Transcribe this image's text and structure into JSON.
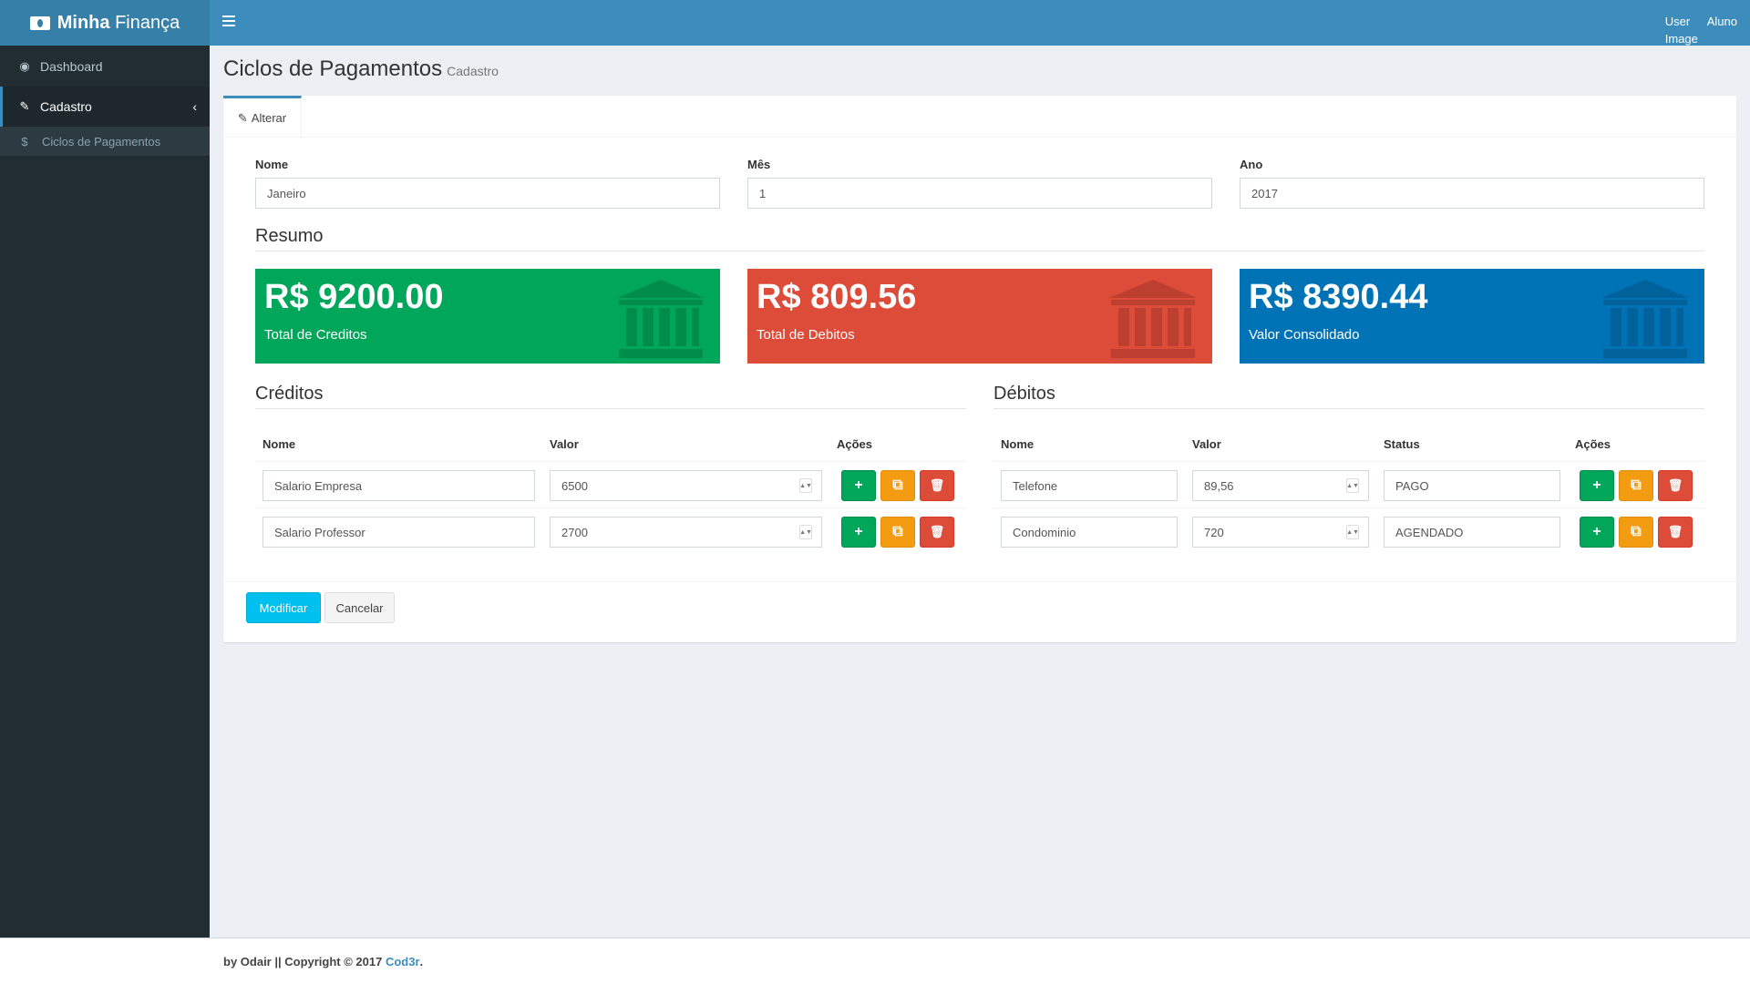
{
  "app": {
    "title_bold": "Minha",
    "title_light": "Finança",
    "user_image": "User Image",
    "user_name": "Aluno"
  },
  "sidebar": {
    "items": [
      {
        "label": "Dashboard",
        "icon": "dashboard-icon"
      },
      {
        "label": "Cadastro",
        "icon": "edit-icon"
      }
    ],
    "subitems": [
      {
        "label": "Ciclos de Pagamentos",
        "icon": "dollar-icon"
      }
    ]
  },
  "page": {
    "title": "Ciclos de Pagamentos",
    "subtitle": "Cadastro"
  },
  "tab": {
    "label": "Alterar",
    "icon": "pencil-icon"
  },
  "form": {
    "nome": {
      "label": "Nome",
      "value": "Janeiro"
    },
    "mes": {
      "label": "Mês",
      "value": "1"
    },
    "ano": {
      "label": "Ano",
      "value": "2017"
    }
  },
  "resumo": {
    "title": "Resumo",
    "cards": [
      {
        "amount": "R$ 9200.00",
        "caption": "Total de Creditos",
        "color": "#00a65a"
      },
      {
        "amount": "R$ 809.56",
        "caption": "Total de Debitos",
        "color": "#dd4b39"
      },
      {
        "amount": "R$ 8390.44",
        "caption": "Valor Consolidado",
        "color": "#0073b7"
      }
    ]
  },
  "creditos": {
    "title": "Créditos",
    "headers": {
      "nome": "Nome",
      "valor": "Valor",
      "acoes": "Ações"
    },
    "rows": [
      {
        "nome": "Salario Empresa",
        "valor": "6500"
      },
      {
        "nome": "Salario Professor",
        "valor": "2700"
      }
    ]
  },
  "debitos": {
    "title": "Débitos",
    "headers": {
      "nome": "Nome",
      "valor": "Valor",
      "status": "Status",
      "acoes": "Ações"
    },
    "rows": [
      {
        "nome": "Telefone",
        "valor": "89,56",
        "status": "PAGO"
      },
      {
        "nome": "Condominio",
        "valor": "720",
        "status": "AGENDADO"
      }
    ]
  },
  "actions": {
    "submit": "Modificar",
    "cancel": "Cancelar"
  },
  "footer": {
    "prefix": "by Odair || Copyright © 2017 ",
    "link": "Cod3r",
    "suffix": "."
  }
}
